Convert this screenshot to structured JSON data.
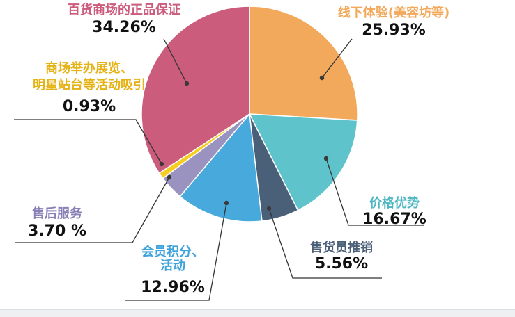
{
  "chart_data": {
    "type": "pie",
    "start": "12 o'clock, clockwise",
    "slices": [
      {
        "label": "线下体验(美容坊等)",
        "label_lines": [
          "线下体验(美容坊等)"
        ],
        "value": 25.93,
        "value_text": "25.93%",
        "color": "#f2a95b",
        "label_color": "#f2a95b"
      },
      {
        "label": "价格优势",
        "label_lines": [
          "价格优势"
        ],
        "value": 16.67,
        "value_text": "16.67%",
        "color": "#5fc3cc",
        "label_color": "#4fb7c4"
      },
      {
        "label": "售货员推销",
        "label_lines": [
          "售货员推销"
        ],
        "value": 5.56,
        "value_text": "5.56%",
        "color": "#4a6079",
        "label_color": "#4a6079"
      },
      {
        "label": "会员积分、活动",
        "label_lines": [
          "会员积分、",
          "活动"
        ],
        "value": 12.96,
        "value_text": "12.96%",
        "color": "#47a9dc",
        "label_color": "#3ea3da"
      },
      {
        "label": "售后服务",
        "label_lines": [
          "售后服务"
        ],
        "value": 3.7,
        "value_text": "3.70 %",
        "color": "#9a93c0",
        "label_color": "#8a80b8"
      },
      {
        "label": "商场举办展览、明星站台等活动吸引",
        "label_lines": [
          "商场举办展览、",
          "明星站台等活动吸引"
        ],
        "value": 0.93,
        "value_text": "0.93%",
        "color": "#f6cd21",
        "label_color": "#e6b317"
      },
      {
        "label": "百货商场的正品保证",
        "label_lines": [
          "百货商场的正品保证"
        ],
        "value": 34.26,
        "value_text": "34.26%",
        "color": "#cc5c7c",
        "label_color": "#cc5c7c"
      }
    ]
  }
}
